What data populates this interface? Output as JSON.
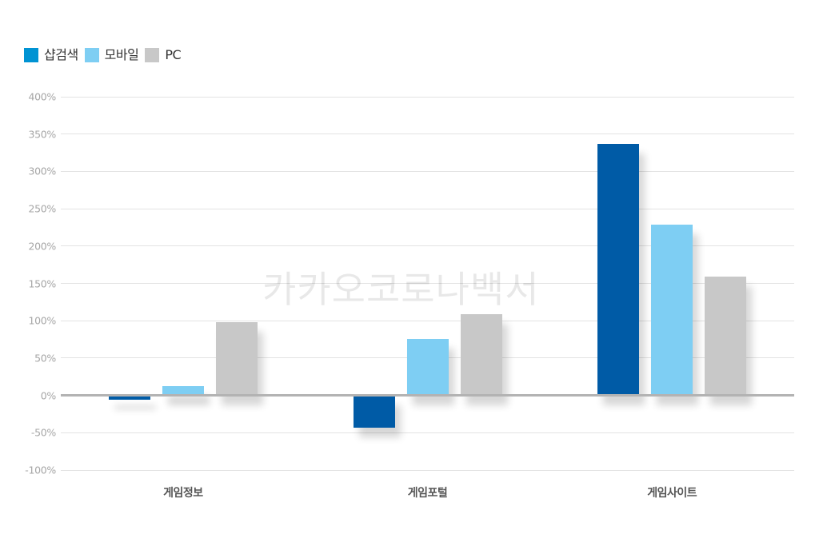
{
  "legend": [
    {
      "label": "샵검색",
      "color": "#0093d3"
    },
    {
      "label": "모바일",
      "color": "#7ecef3"
    },
    {
      "label": "PC",
      "color": "#c8c8c8"
    }
  ],
  "watermark": "카카오코로나백서",
  "colors": {
    "series_bar": [
      "#005ba6",
      "#7ecef3",
      "#c8c8c8"
    ],
    "grid": "#e3e3e3",
    "zero_axis": "#b3b3b3"
  },
  "chart_data": {
    "type": "bar",
    "title": "",
    "xlabel": "",
    "ylabel": "",
    "categories": [
      "게임정보",
      "게임포털",
      "게임사이트"
    ],
    "series": [
      {
        "name": "샵검색",
        "values": [
          -6,
          -43,
          337
        ]
      },
      {
        "name": "모바일",
        "values": [
          12,
          76,
          229
        ]
      },
      {
        "name": "PC",
        "values": [
          98,
          109,
          159
        ]
      }
    ],
    "ylim": [
      -100,
      400
    ],
    "yticks": [
      400,
      350,
      300,
      250,
      200,
      150,
      100,
      50,
      0,
      -50,
      -100
    ],
    "ytick_labels": [
      "400%",
      "350%",
      "300%",
      "250%",
      "200%",
      "150%",
      "100%",
      "50%",
      "0%",
      "-50%",
      "-100%"
    ],
    "grid": true,
    "legend_position": "top-left",
    "watermark": "카카오코로나백서"
  }
}
